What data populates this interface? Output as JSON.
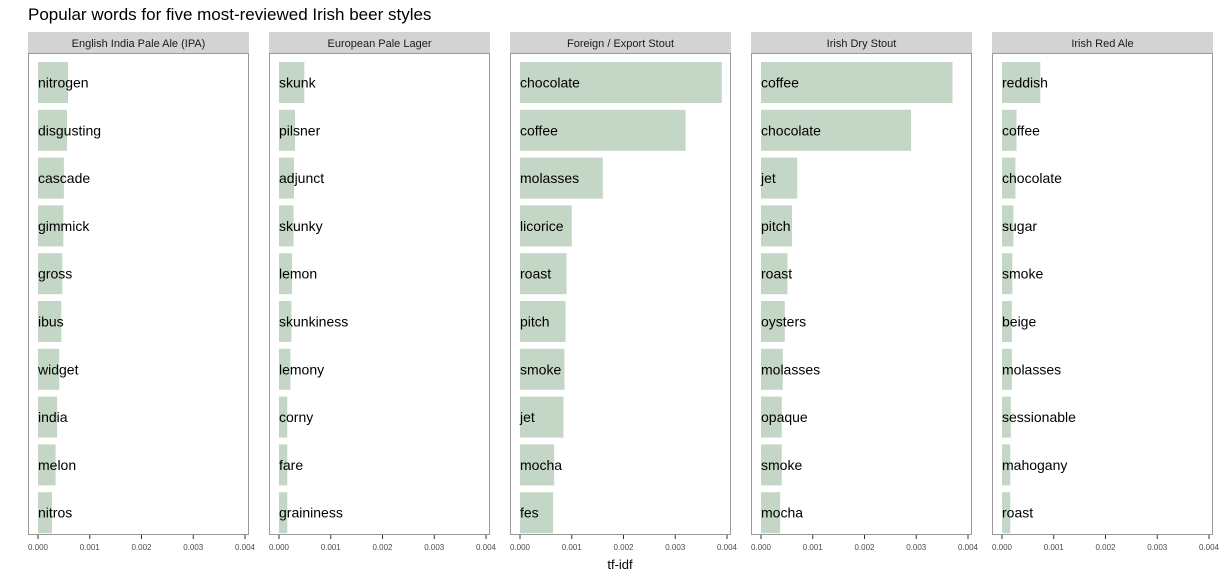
{
  "chart_data": {
    "type": "bar",
    "orientation": "horizontal",
    "facet": true,
    "title": "Popular words for five most-reviewed Irish beer styles",
    "xlabel": "tf-idf",
    "ylabel": "",
    "xlim": [
      0,
      0.004
    ],
    "xticks": [
      0,
      0.001,
      0.002,
      0.003,
      0.004
    ],
    "xtick_labels": [
      "0.000",
      "0.001",
      "0.002",
      "0.003",
      "0.004"
    ],
    "bar_color": "#c4d6c5",
    "strip_color": "#d3d3d3",
    "panel_border_color": "#999999",
    "grid": false,
    "legend": "none",
    "panels": [
      {
        "name": "English India Pale Ale (IPA)",
        "words": [
          "nitrogen",
          "disgusting",
          "cascade",
          "gimmick",
          "gross",
          "ibus",
          "widget",
          "india",
          "melon",
          "nitros"
        ],
        "values": [
          0.00058,
          0.00056,
          0.0005,
          0.00049,
          0.00047,
          0.00045,
          0.00041,
          0.00037,
          0.00034,
          0.00027
        ]
      },
      {
        "name": "European Pale Lager",
        "words": [
          "skunk",
          "pilsner",
          "adjunct",
          "skunky",
          "lemon",
          "skunkiness",
          "lemony",
          "corny",
          "fare",
          "graininess"
        ],
        "values": [
          0.00049,
          0.00031,
          0.00029,
          0.00028,
          0.00025,
          0.00024,
          0.00022,
          0.00016,
          0.00016,
          0.00016
        ]
      },
      {
        "name": "Foreign / Export Stout",
        "words": [
          "chocolate",
          "coffee",
          "molasses",
          "licorice",
          "roast",
          "pitch",
          "smoke",
          "jet",
          "mocha",
          "fes"
        ],
        "values": [
          0.0039,
          0.0032,
          0.0016,
          0.001,
          0.0009,
          0.00088,
          0.00086,
          0.00084,
          0.00066,
          0.00064
        ]
      },
      {
        "name": "Irish Dry Stout",
        "words": [
          "coffee",
          "chocolate",
          "jet",
          "pitch",
          "roast",
          "oysters",
          "molasses",
          "opaque",
          "smoke",
          "mocha"
        ],
        "values": [
          0.0037,
          0.0029,
          0.0007,
          0.0006,
          0.00051,
          0.00046,
          0.00042,
          0.0004,
          0.0004,
          0.00037
        ]
      },
      {
        "name": "Irish Red Ale",
        "words": [
          "reddish",
          "coffee",
          "chocolate",
          "sugar",
          "smoke",
          "beige",
          "molasses",
          "sessionable",
          "mahogany",
          "roast"
        ],
        "values": [
          0.00074,
          0.00028,
          0.00026,
          0.00022,
          0.0002,
          0.00019,
          0.00019,
          0.00017,
          0.00016,
          0.00016
        ]
      }
    ]
  }
}
